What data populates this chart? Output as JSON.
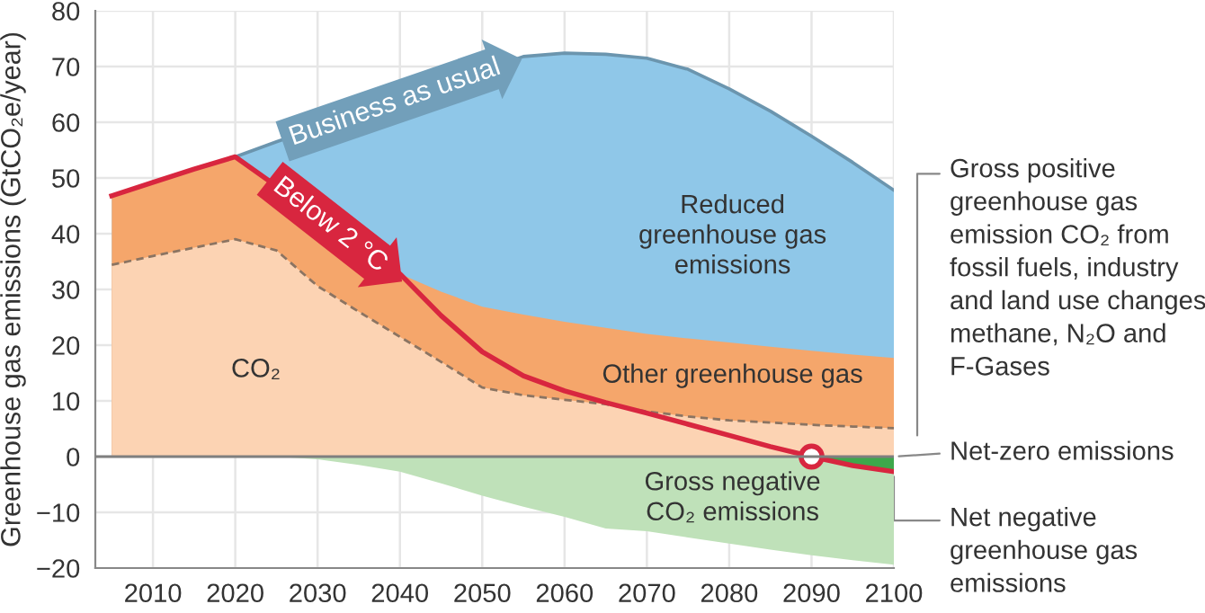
{
  "chart_data": {
    "type": "area",
    "ylabel": "Greenhouse gas emissions (GtCO₂e/year)",
    "xlim": [
      2003,
      2100
    ],
    "xticks": [
      2010,
      2020,
      2030,
      2040,
      2050,
      2060,
      2070,
      2080,
      2090,
      2100
    ],
    "ylim": [
      -20,
      80
    ],
    "yticks": [
      {
        "value": -20,
        "label": "−20"
      },
      {
        "value": -10,
        "label": "−10"
      },
      0,
      10,
      20,
      30,
      40,
      50,
      60,
      70,
      80
    ],
    "grid": true,
    "ref_lines": [
      {
        "axis": "y",
        "value": 0,
        "color": "#7f7f7f"
      }
    ],
    "annotations": [
      "Reduced\ngreenhouse gas\nemissions",
      "Gross positive\ngreenhouse gas\nemission CO₂ from\nfossil fuels, industry\nand land use changes\nmethane, N₂O and\nF-Gases",
      {
        "text": "Net-zero emissions",
        "x": 2100,
        "y": 0
      }
    ],
    "series": [
      {
        "name": "Business as usual",
        "color": "#8fc7e8",
        "line_style": "solid",
        "x": [
          2005,
          2010,
          2015,
          2020,
          2025,
          2030,
          2035,
          2040,
          2045,
          2050,
          2055,
          2060,
          2065,
          2070,
          2075,
          2080,
          2085,
          2090,
          2095,
          2100
        ],
        "values": [
          46.8,
          49.2,
          51.6,
          53.8,
          56.5,
          null,
          null,
          null,
          null,
          null,
          71.8,
          72.4,
          72.2,
          71.5,
          69.5,
          66,
          62,
          57.5,
          52.8,
          47.8
        ]
      },
      {
        "name": "Other greenhouse gas",
        "color": "#f5a66b",
        "x": [
          2005,
          2010,
          2015,
          2020,
          2025,
          2030,
          2035,
          2040,
          2045,
          2050,
          2055,
          2060,
          2065,
          2070,
          2075,
          2080,
          2085,
          2090,
          2095,
          2100
        ],
        "values": [
          46.8,
          49.2,
          51.6,
          53.8,
          null,
          null,
          null,
          32.8,
          29.6,
          26.9,
          25.5,
          24.2,
          23.1,
          22,
          21.2,
          20.5,
          19.7,
          19,
          18.3,
          17.7
        ]
      },
      {
        "name": "CO₂",
        "color": "#fcd3b3",
        "line_style": "dashed",
        "x": [
          2005,
          2010,
          2015,
          2020,
          2025,
          2030,
          2035,
          2040,
          2045,
          2050,
          2055,
          2060,
          2065,
          2070,
          2075,
          2080,
          2085,
          2090,
          2095,
          2100
        ],
        "values": [
          34.4,
          36,
          37.5,
          39,
          37,
          30.6,
          26,
          21.5,
          17,
          12.4,
          11,
          10.2,
          9.4,
          8.1,
          7.2,
          6.5,
          6.1,
          5.7,
          5.4,
          5.1
        ]
      },
      {
        "name": "Gross negative\nCO₂ emissions",
        "color": "#bfe1b9",
        "x": [
          2005,
          2010,
          2015,
          2020,
          2025,
          2030,
          2035,
          2040,
          2045,
          2050,
          2055,
          2060,
          2065,
          2070,
          2075,
          2080,
          2085,
          2090,
          2095,
          2100
        ],
        "values": [
          0,
          0,
          0,
          0,
          0,
          -0.5,
          -1.5,
          -2.7,
          -4.8,
          -7,
          -9,
          -10.8,
          -12.9,
          -13.4,
          -14.5,
          -15.6,
          -16.7,
          -17.7,
          -18.6,
          -19.4
        ]
      },
      {
        "name": "Net negative\ngreenhouse gas\nemissions",
        "color": "#3da84b",
        "x": [
          2090,
          2095,
          2100
        ],
        "values": [
          0,
          -1.6,
          -2.7
        ]
      },
      {
        "name": "Below 2 °C",
        "type": "line",
        "color": "#d8263f",
        "x": [
          2005,
          2010,
          2015,
          2020,
          2025,
          2030,
          2035,
          2040,
          2045,
          2050,
          2055,
          2060,
          2065,
          2070,
          2075,
          2080,
          2085,
          2090,
          2095,
          2100
        ],
        "values": [
          46.8,
          49.2,
          51.6,
          53.8,
          null,
          null,
          null,
          32.8,
          25.3,
          18.8,
          14.5,
          11.8,
          9.7,
          7.8,
          5.8,
          3.8,
          1.8,
          0,
          -1.6,
          -2.7
        ]
      },
      {
        "type": "scatter",
        "color": "#d8263f",
        "marker": "circle",
        "x": [
          2090
        ],
        "values": [
          0
        ]
      }
    ]
  }
}
